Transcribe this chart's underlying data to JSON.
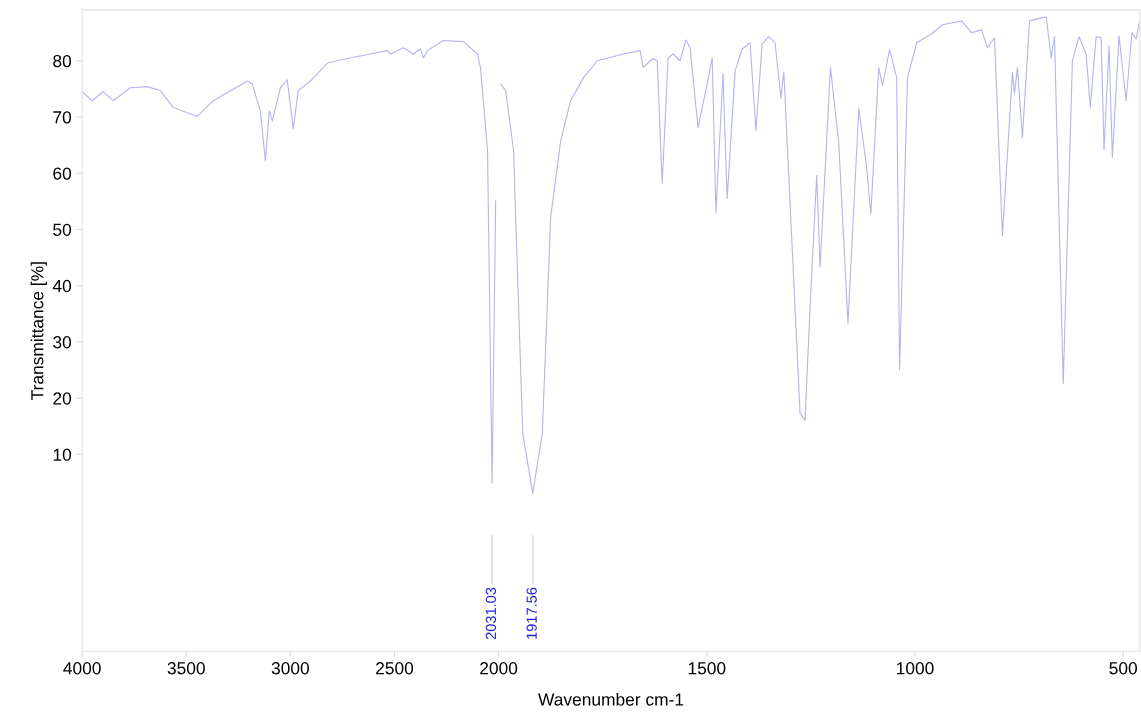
{
  "chart_data": [
    {
      "type": "line",
      "ylabel": "Transmittance [%]",
      "xlim": [
        4000,
        2000
      ],
      "xticks": [
        4000,
        3500,
        3000,
        2500,
        2000
      ],
      "ylim": [
        -25,
        89
      ],
      "yticks": [
        10,
        20,
        30,
        40,
        50,
        60,
        70,
        80
      ],
      "grid": false,
      "marker": "none",
      "line_style": "solid",
      "series": [
        {
          "color": "#b4b4f0",
          "x": [
            4000,
            3952,
            3899,
            3851,
            3769,
            3688,
            3625,
            3563,
            3447,
            3370,
            3207,
            3183,
            3144,
            3120,
            3101,
            3087,
            3048,
            3015,
            2986,
            2962,
            2904,
            2822,
            2726,
            2616,
            2534,
            2519,
            2457,
            2409,
            2375,
            2361,
            2342,
            2265,
            2169,
            2101,
            2087,
            2053,
            2031,
            2014
          ],
          "values": [
            74.5,
            72.9,
            74.5,
            72.9,
            75.2,
            75.4,
            74.7,
            71.7,
            70.1,
            72.9,
            76.4,
            75.9,
            71.1,
            62.2,
            71.1,
            69.3,
            75.2,
            76.6,
            67.9,
            74.7,
            76.4,
            79.6,
            80.4,
            81.2,
            81.8,
            81.2,
            82.3,
            81.2,
            82.1,
            80.5,
            81.8,
            83.6,
            83.4,
            81.2,
            78.8,
            64.0,
            4.9,
            55.1
          ]
        }
      ],
      "ref_lines": [
        {
          "axis": "x",
          "value": 2031.03,
          "label": "2031.03",
          "color": "#c8c8f0"
        }
      ]
    },
    {
      "type": "line",
      "xlabel": "Wavenumber cm-1",
      "tick_labels": "x",
      "xlim": [
        2000,
        460
      ],
      "xticks": [
        1500,
        1000,
        500
      ],
      "ylim": [
        -25,
        89
      ],
      "yticks": [
        10,
        20,
        30,
        40,
        50,
        60,
        70,
        80
      ],
      "grid": false,
      "marker": "none",
      "line_style": "solid",
      "series": [
        {
          "color": "#b4b4f0",
          "x": [
            1995,
            1983,
            1964,
            1942,
            1918,
            1895,
            1875,
            1851,
            1827,
            1796,
            1763,
            1700,
            1660,
            1653,
            1629,
            1619,
            1607,
            1593,
            1581,
            1564,
            1550,
            1540,
            1521,
            1499,
            1487,
            1478,
            1461,
            1451,
            1432,
            1415,
            1396,
            1382,
            1367,
            1351,
            1336,
            1322,
            1315,
            1276,
            1264,
            1252,
            1236,
            1228,
            1203,
            1183,
            1161,
            1135,
            1116,
            1106,
            1087,
            1078,
            1061,
            1044,
            1037,
            1018,
            996,
            960,
            934,
            888,
            864,
            840,
            826,
            809,
            790,
            766,
            761,
            754,
            742,
            725,
            685,
            673,
            665,
            644,
            622,
            606,
            589,
            579,
            565,
            553,
            546,
            534,
            526,
            510,
            493,
            479,
            469,
            461
          ],
          "values": [
            75.9,
            74.7,
            64.0,
            13.7,
            3.1,
            13.7,
            52.1,
            65.7,
            72.9,
            77.0,
            80.0,
            81.2,
            81.8,
            78.8,
            80.4,
            80.0,
            58.2,
            80.5,
            81.2,
            80.0,
            83.7,
            82.3,
            68.1,
            75.9,
            80.5,
            53.0,
            77.7,
            55.5,
            78.2,
            82.1,
            83.2,
            67.6,
            83.0,
            84.3,
            83.2,
            73.4,
            78.0,
            17.3,
            16.1,
            36.2,
            59.6,
            43.3,
            78.9,
            65.3,
            33.3,
            71.5,
            61.0,
            52.8,
            78.8,
            75.6,
            82.0,
            77.0,
            25.1,
            77.0,
            83.2,
            84.8,
            86.4,
            87.1,
            85.0,
            85.5,
            82.3,
            84.1,
            48.9,
            77.9,
            74.1,
            78.8,
            66.3,
            87.1,
            87.8,
            80.5,
            84.3,
            22.6,
            80.0,
            84.3,
            81.2,
            71.7,
            84.3,
            84.1,
            64.2,
            82.7,
            62.8,
            84.4,
            72.9,
            85.0,
            83.9,
            86.8
          ]
        }
      ],
      "ref_lines": [
        {
          "axis": "x",
          "value": 1917.56,
          "label": "1917.56",
          "color": "#c8c8f0"
        }
      ]
    }
  ]
}
